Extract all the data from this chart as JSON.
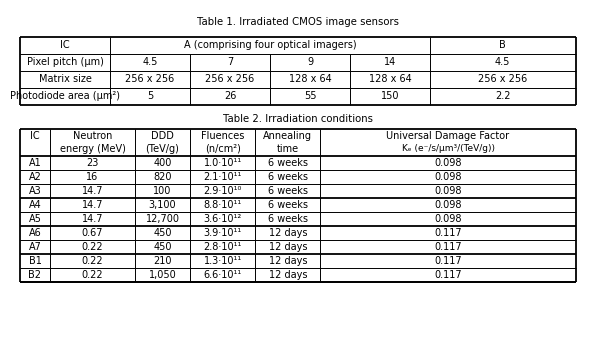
{
  "table1_title": "Table 1. Irradiated CMOS image sensors",
  "table2_title": "Table 2. Irradiation conditions",
  "t1_row0": [
    "IC",
    "A (comprising four optical imagers)",
    "",
    "",
    "",
    "B"
  ],
  "t1_row1": [
    "Pixel pitch (μm)",
    "4.5",
    "7",
    "9",
    "14",
    "4.5"
  ],
  "t1_row2": [
    "Matrix size",
    "256 x 256",
    "256 x 256",
    "128 x 64",
    "128 x 64",
    "256 x 256"
  ],
  "t1_row3": [
    "Photodiode area (μm²)",
    "5",
    "26",
    "55",
    "150",
    "2.2"
  ],
  "t2_col_headers_line1": [
    "IC",
    "Neutron",
    "DDD",
    "Fluences",
    "Annealing",
    "Universal Damage Factor"
  ],
  "t2_col_headers_line2": [
    "",
    "energy (MeV)",
    "(TeV/g)",
    "(n/cm²)",
    "time",
    "Kₑ (e⁻/s/μm³/(TeV/g))"
  ],
  "t2_rows": [
    [
      "A1",
      "23",
      "400",
      "1.0·10¹¹",
      "6 weeks",
      "0.098"
    ],
    [
      "A2",
      "16",
      "820",
      "2.1·10¹¹",
      "6 weeks",
      "0.098"
    ],
    [
      "A3",
      "14.7",
      "100",
      "2.9·10¹⁰",
      "6 weeks",
      "0.098"
    ],
    [
      "A4",
      "14.7",
      "3,100",
      "8.8·10¹¹",
      "6 weeks",
      "0.098"
    ],
    [
      "A5",
      "14.7",
      "12,700",
      "3.6·10¹²",
      "6 weeks",
      "0.098"
    ],
    [
      "A6",
      "0.67",
      "450",
      "3.9·10¹¹",
      "12 days",
      "0.117"
    ],
    [
      "A7",
      "0.22",
      "450",
      "2.8·10¹¹",
      "12 days",
      "0.117"
    ],
    [
      "B1",
      "0.22",
      "210",
      "1.3·10¹¹",
      "12 days",
      "0.117"
    ],
    [
      "B2",
      "0.22",
      "1,050",
      "6.6·10¹¹",
      "12 days",
      "0.117"
    ]
  ],
  "t2_thick_after": [
    3,
    5,
    7
  ],
  "bg_color": "#ffffff",
  "font_size": 7.0
}
